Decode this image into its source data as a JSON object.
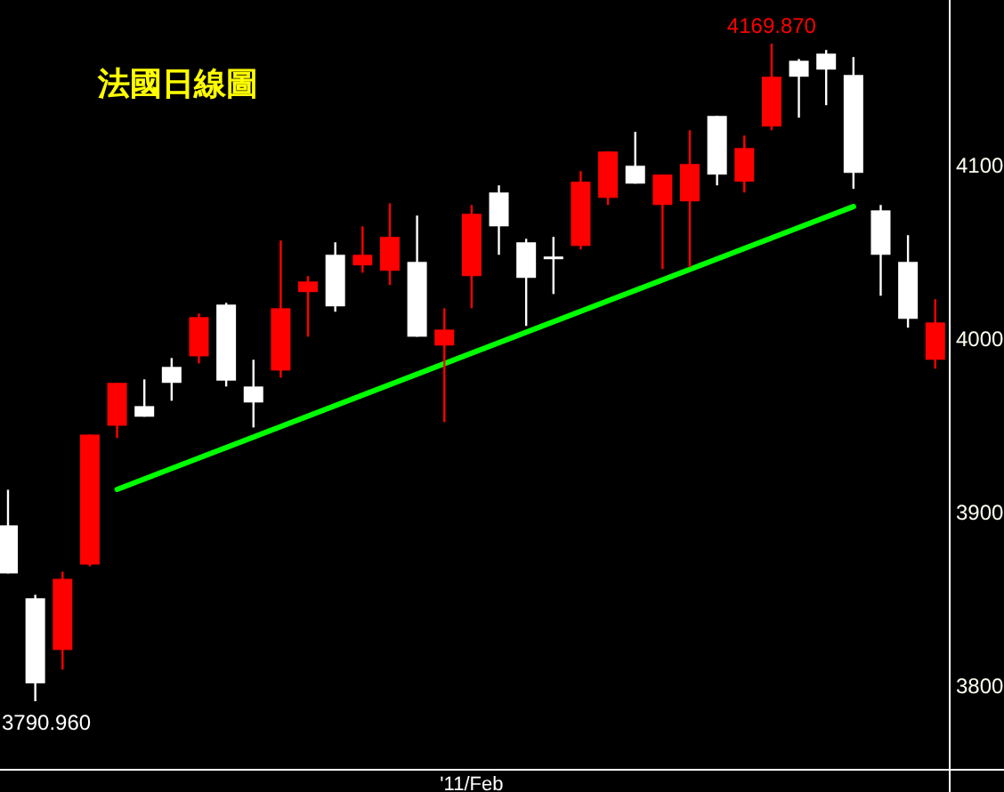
{
  "chart_data": {
    "type": "candlestick",
    "title": "法國日線圖",
    "categories": [
      null,
      null,
      null,
      null,
      null,
      null,
      null,
      null,
      null,
      null,
      null,
      null,
      null,
      null,
      null,
      null,
      null,
      "'11/Feb",
      null,
      null,
      null,
      null,
      null,
      null,
      null,
      null,
      null,
      null,
      null,
      null,
      null,
      null,
      null,
      null,
      null
    ],
    "ohlc": [
      [
        3892.3,
        3912.8,
        3864.6,
        3864.6
      ],
      [
        3850.3,
        3852.3,
        3790.96,
        3801.3
      ],
      [
        3820.5,
        3865.6,
        3809.2,
        3861.5
      ],
      [
        3869.7,
        3944.6,
        3868.7,
        3944.6
      ],
      [
        3949.7,
        3974.4,
        3942.6,
        3974.4
      ],
      [
        3961.0,
        3976.4,
        3954.9,
        3954.9
      ],
      [
        3983.6,
        3988.7,
        3964.1,
        3974.4
      ],
      [
        3989.7,
        4014.4,
        3985.6,
        4012.3
      ],
      [
        4019.5,
        4020.5,
        3972.3,
        3975.7
      ],
      [
        3972.3,
        3987.7,
        3948.7,
        3963.1
      ],
      [
        3981.5,
        4056.4,
        3977.4,
        4017.4
      ],
      [
        4026.7,
        4035.9,
        4001.0,
        4032.8
      ],
      [
        4048.2,
        4055.4,
        4015.4,
        4018.5
      ],
      [
        4042.1,
        4064.6,
        4037.9,
        4048.2
      ],
      [
        4039.0,
        4077.9,
        4030.8,
        4058.5
      ],
      [
        4044.1,
        4070.8,
        4001.0,
        4001.0
      ],
      [
        3995.9,
        4017.4,
        3951.8,
        4005.1
      ],
      [
        4035.9,
        4076.9,
        4017.4,
        4071.8
      ],
      [
        4084.1,
        4088.2,
        4048.2,
        4064.6
      ],
      [
        4055.4,
        4057.4,
        4007.2,
        4034.9
      ],
      [
        4047.2,
        4058.5,
        4025.6,
        4046.8
      ],
      [
        4053.3,
        4096.4,
        4051.3,
        4090.3
      ],
      [
        4081.0,
        4107.7,
        4076.9,
        4107.7
      ],
      [
        4099.5,
        4119.0,
        4089.2,
        4089.2
      ],
      [
        4076.9,
        4094.4,
        4040.0,
        4094.4
      ],
      [
        4079.0,
        4120.0,
        4041.0,
        4100.5
      ],
      [
        4128.2,
        4128.2,
        4088.2,
        4094.4
      ],
      [
        4090.3,
        4116.9,
        4084.1,
        4109.7
      ],
      [
        4122.1,
        4169.87,
        4120.0,
        4150.8
      ],
      [
        4160.0,
        4161.0,
        4127.2,
        4150.8
      ],
      [
        4164.1,
        4166.2,
        4134.4,
        4154.9
      ],
      [
        4151.8,
        4162.1,
        4086.2,
        4095.4
      ],
      [
        4073.8,
        4076.9,
        4024.6,
        4048.2
      ],
      [
        4044.1,
        4059.5,
        4006.2,
        4011.3
      ],
      [
        3987.7,
        4022.6,
        3982.6,
        4009.2
      ]
    ],
    "colors": [
      "#ffffff",
      "#ffffff",
      "#ff0000",
      "#ff0000",
      "#ff0000",
      "#ffffff",
      "#ffffff",
      "#ff0000",
      "#ffffff",
      "#ffffff",
      "#ff0000",
      "#ff0000",
      "#ffffff",
      "#ff0000",
      "#ff0000",
      "#ffffff",
      "#ff0000",
      "#ff0000",
      "#ffffff",
      "#ffffff",
      "#ffffff",
      "#ff0000",
      "#ff0000",
      "#ffffff",
      "#ff0000",
      "#ff0000",
      "#ffffff",
      "#ff0000",
      "#ff0000",
      "#ffffff",
      "#ffffff",
      "#ffffff",
      "#ffffff",
      "#ffffff",
      "#ff0000"
    ],
    "series": [
      {
        "type": "line",
        "values": [
          null,
          null,
          null,
          null,
          3913,
          null,
          null,
          null,
          null,
          null,
          null,
          null,
          null,
          null,
          null,
          null,
          null,
          null,
          null,
          null,
          null,
          null,
          null,
          null,
          null,
          null,
          null,
          null,
          null,
          null,
          null,
          4076,
          null,
          null,
          null
        ],
        "color": "#00ff00"
      }
    ],
    "ylim": [
      3752,
      4195
    ],
    "yticks": [
      3800,
      3900,
      4000,
      4100
    ],
    "annotations": [
      {
        "text": "4169.870",
        "y": 4169.87
      },
      "3790.960"
    ],
    "grid": false
  }
}
